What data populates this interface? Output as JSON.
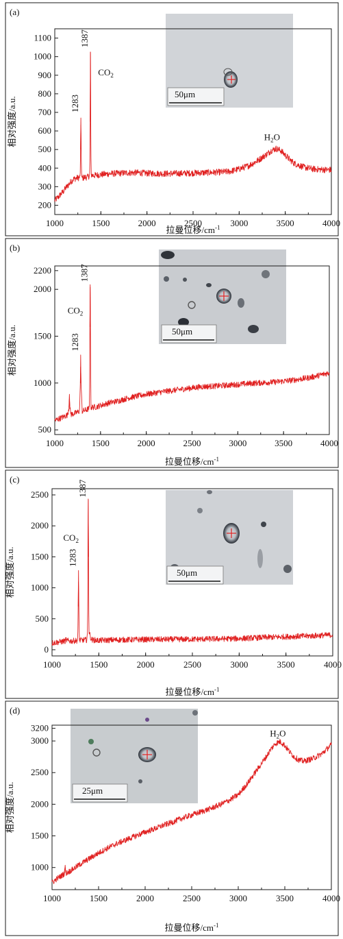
{
  "chart_data": [
    {
      "panel": "a",
      "type": "line",
      "panel_label": "(a)",
      "xlabel": "拉曼位移/cm",
      "xlabel_sup": "-1",
      "ylabel": "相对强度/a.u.",
      "xlim": [
        1000,
        4000
      ],
      "ylim": [
        150,
        1150
      ],
      "xticks": [
        1000,
        1500,
        2000,
        2500,
        3000,
        3500,
        4000
      ],
      "yticks": [
        200,
        300,
        400,
        500,
        600,
        700,
        800,
        900,
        1000,
        1100
      ],
      "color": "#e02020",
      "series": [
        {
          "x": [
            1000,
            1040,
            1080,
            1100,
            1120,
            1140,
            1160,
            1180,
            1200,
            1230,
            1260,
            1275,
            1280,
            1283,
            1286,
            1292,
            1320,
            1360,
            1380,
            1384,
            1387,
            1390,
            1394,
            1420,
            1500,
            1600,
            1700,
            1800,
            1900,
            2000,
            2200,
            2400,
            2600,
            2800,
            2900,
            3000,
            3100,
            3200,
            3300,
            3350,
            3400,
            3450,
            3500,
            3550,
            3600,
            3700,
            3800,
            3900,
            4000
          ],
          "y": [
            225,
            245,
            268,
            278,
            295,
            305,
            318,
            330,
            340,
            345,
            348,
            352,
            500,
            670,
            500,
            345,
            350,
            352,
            362,
            650,
            1025,
            660,
            365,
            360,
            365,
            370,
            372,
            375,
            375,
            372,
            370,
            372,
            375,
            378,
            382,
            395,
            412,
            440,
            475,
            495,
            505,
            495,
            470,
            445,
            425,
            405,
            395,
            392,
            390
          ]
        }
      ],
      "annotations": [
        {
          "text": "1283",
          "x": 1283,
          "y": 700,
          "rotate": true
        },
        {
          "text": "1387",
          "x": 1387,
          "y": 1050,
          "rotate": true
        },
        {
          "text": "CO",
          "sub": "2",
          "x": 1470,
          "y": 900
        },
        {
          "text": "H",
          "sub": "2",
          "tail": "O",
          "x": 3270,
          "y": 550
        }
      ],
      "inset_scale": "50μm"
    },
    {
      "panel": "b",
      "type": "line",
      "panel_label": "(b)",
      "xlabel": "拉曼位移/cm",
      "xlabel_sup": "-1",
      "ylabel": "相对强度/a.u.",
      "xlim": [
        1000,
        4000
      ],
      "ylim": [
        450,
        2250
      ],
      "xticks": [
        1000,
        1500,
        2000,
        2500,
        3000,
        3500,
        4000
      ],
      "yticks": [
        500,
        1000,
        1500,
        2000,
        2200
      ],
      "color": "#e02020",
      "series": [
        {
          "x": [
            1000,
            1050,
            1100,
            1140,
            1155,
            1160,
            1165,
            1180,
            1230,
            1270,
            1280,
            1283,
            1286,
            1300,
            1350,
            1380,
            1384,
            1387,
            1390,
            1395,
            1450,
            1500,
            1600,
            1700,
            1800,
            1900,
            2000,
            2200,
            2400,
            2600,
            2800,
            3000,
            3200,
            3400,
            3600,
            3800,
            4000
          ],
          "y": [
            600,
            620,
            640,
            660,
            740,
            880,
            720,
            665,
            680,
            700,
            1000,
            1300,
            1000,
            700,
            715,
            730,
            1600,
            2050,
            1600,
            740,
            745,
            760,
            790,
            810,
            840,
            860,
            880,
            910,
            935,
            960,
            970,
            985,
            1000,
            1010,
            1030,
            1060,
            1110
          ]
        }
      ],
      "annotations": [
        {
          "text": "1283",
          "x": 1283,
          "y": 1340,
          "rotate": true
        },
        {
          "text": "1387",
          "x": 1387,
          "y": 2080,
          "rotate": true
        },
        {
          "text": "CO",
          "sub": "2",
          "x": 1140,
          "y": 1740
        }
      ],
      "inset_scale": "50μm"
    },
    {
      "panel": "c",
      "type": "line",
      "panel_label": "(c)",
      "xlabel": "拉曼位移/cm",
      "xlabel_sup": "-1",
      "ylabel": "相对强度/a.u.",
      "xlim": [
        1000,
        4000
      ],
      "ylim": [
        -100,
        2600
      ],
      "xticks": [
        1000,
        1500,
        2000,
        2500,
        3000,
        3500,
        4000
      ],
      "yticks": [
        0,
        500,
        1000,
        1500,
        2000,
        2500
      ],
      "color": "#e02020",
      "series": [
        {
          "x": [
            1000,
            1050,
            1100,
            1140,
            1150,
            1160,
            1200,
            1250,
            1275,
            1280,
            1283,
            1286,
            1292,
            1330,
            1370,
            1380,
            1384,
            1387,
            1390,
            1394,
            1420,
            1500,
            1700,
            2000,
            2500,
            3000,
            3300,
            3500,
            3800,
            4000
          ],
          "y": [
            110,
            120,
            130,
            140,
            170,
            145,
            140,
            145,
            150,
            700,
            1280,
            700,
            150,
            155,
            160,
            300,
            1500,
            2420,
            1500,
            300,
            160,
            150,
            160,
            165,
            170,
            180,
            200,
            210,
            225,
            240
          ]
        }
      ],
      "annotations": [
        {
          "text": "1283",
          "x": 1283,
          "y": 1340,
          "rotate": true
        },
        {
          "text": "1387",
          "x": 1387,
          "y": 2460,
          "rotate": true
        },
        {
          "text": "CO",
          "sub": "2",
          "x": 1120,
          "y": 1760
        }
      ],
      "inset_scale": "50μm"
    },
    {
      "panel": "d",
      "type": "line",
      "panel_label": "(d)",
      "xlabel": "拉曼位移/cm",
      "xlabel_sup": "-1",
      "ylabel": "相对强度/a.u.",
      "xlim": [
        1000,
        4000
      ],
      "ylim": [
        650,
        3250
      ],
      "xticks": [
        1000,
        1500,
        2000,
        2500,
        3000,
        3500,
        4000
      ],
      "yticks": [
        1000,
        1500,
        2000,
        2500,
        3000,
        3200
      ],
      "color": "#e02020",
      "series": [
        {
          "x": [
            1000,
            1050,
            1100,
            1130,
            1140,
            1150,
            1200,
            1300,
            1400,
            1500,
            1600,
            1700,
            1800,
            1900,
            2000,
            2100,
            2200,
            2300,
            2400,
            2500,
            2600,
            2700,
            2800,
            2900,
            3000,
            3100,
            3200,
            3300,
            3350,
            3400,
            3450,
            3500,
            3550,
            3600,
            3650,
            3700,
            3800,
            3900,
            3950,
            4000
          ],
          "y": [
            760,
            820,
            870,
            900,
            1010,
            910,
            950,
            1050,
            1140,
            1230,
            1310,
            1380,
            1440,
            1500,
            1560,
            1610,
            1670,
            1720,
            1780,
            1830,
            1880,
            1930,
            1990,
            2060,
            2150,
            2330,
            2540,
            2750,
            2870,
            2960,
            2990,
            2930,
            2830,
            2750,
            2700,
            2680,
            2720,
            2800,
            2870,
            2940
          ]
        }
      ],
      "annotations": [
        {
          "text": "H",
          "sub": "2",
          "tail": "O",
          "x": 3340,
          "y": 3070
        }
      ],
      "inset_scale": "25μm"
    }
  ]
}
